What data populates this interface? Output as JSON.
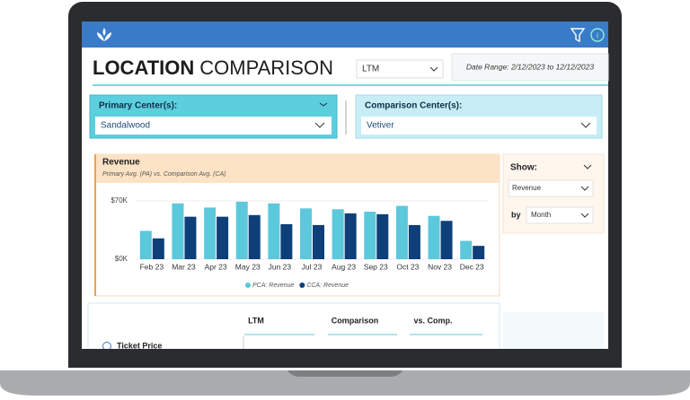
{
  "header": {
    "title_bold": "LOCATION",
    "title_rest": "COMPARISON",
    "period": "LTM",
    "date_range": "Date Range: 2/12/2023 to 12/12/2023"
  },
  "filters": {
    "primary_label": "Primary Center(s):",
    "primary_value": "Sandalwood",
    "comparison_label": "Comparison Center(s):",
    "comparison_value": "Vetiver"
  },
  "show": {
    "label": "Show:",
    "metric": "Revenue",
    "by_label": "by",
    "by_value": "Month"
  },
  "table": {
    "columns": [
      "LTM",
      "Comparison",
      "vs. Comp."
    ],
    "rows": [
      [
        "Ticket Price"
      ]
    ]
  },
  "chart_data": {
    "type": "bar",
    "title": "Revenue",
    "subtitle": "Primary Avg. (PA) vs. Comparison Avg. (CA)",
    "categories": [
      "Feb 23",
      "Mar 23",
      "Apr 23",
      "May 23",
      "Jun 23",
      "Jul 23",
      "Aug 23",
      "Sep 23",
      "Oct 23",
      "Nov 23",
      "Dec 23"
    ],
    "series": [
      {
        "name": "PCA: Revenue",
        "color": "#5bc8dc",
        "values": [
          34000,
          67000,
          62000,
          69000,
          67000,
          61000,
          60000,
          57000,
          64000,
          52000,
          22000
        ]
      },
      {
        "name": "CCA: Revenue",
        "color": "#0d3f7a",
        "values": [
          25000,
          51000,
          51000,
          53000,
          42000,
          41000,
          55000,
          54000,
          41000,
          46000,
          16000
        ]
      }
    ],
    "ylim": [
      0,
      74000
    ],
    "yticks": [
      {
        "value": 0,
        "label": "$0K"
      },
      {
        "value": 70000,
        "label": "$70K"
      }
    ],
    "grid": true
  }
}
